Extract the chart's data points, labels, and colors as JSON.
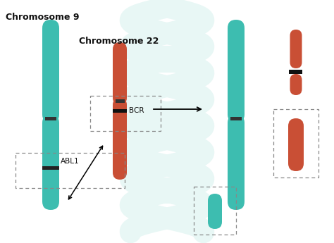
{
  "bg_color": "#ffffff",
  "teal": "#3DBDB0",
  "red": "#C94F35",
  "title_chr9": "Chromosome 9",
  "title_chr22": "Chromosome 22",
  "label_bcr": "BCR",
  "label_abl1": "ABL1",
  "helix_color": "#e8f7f5",
  "dashed_color": "#888888"
}
